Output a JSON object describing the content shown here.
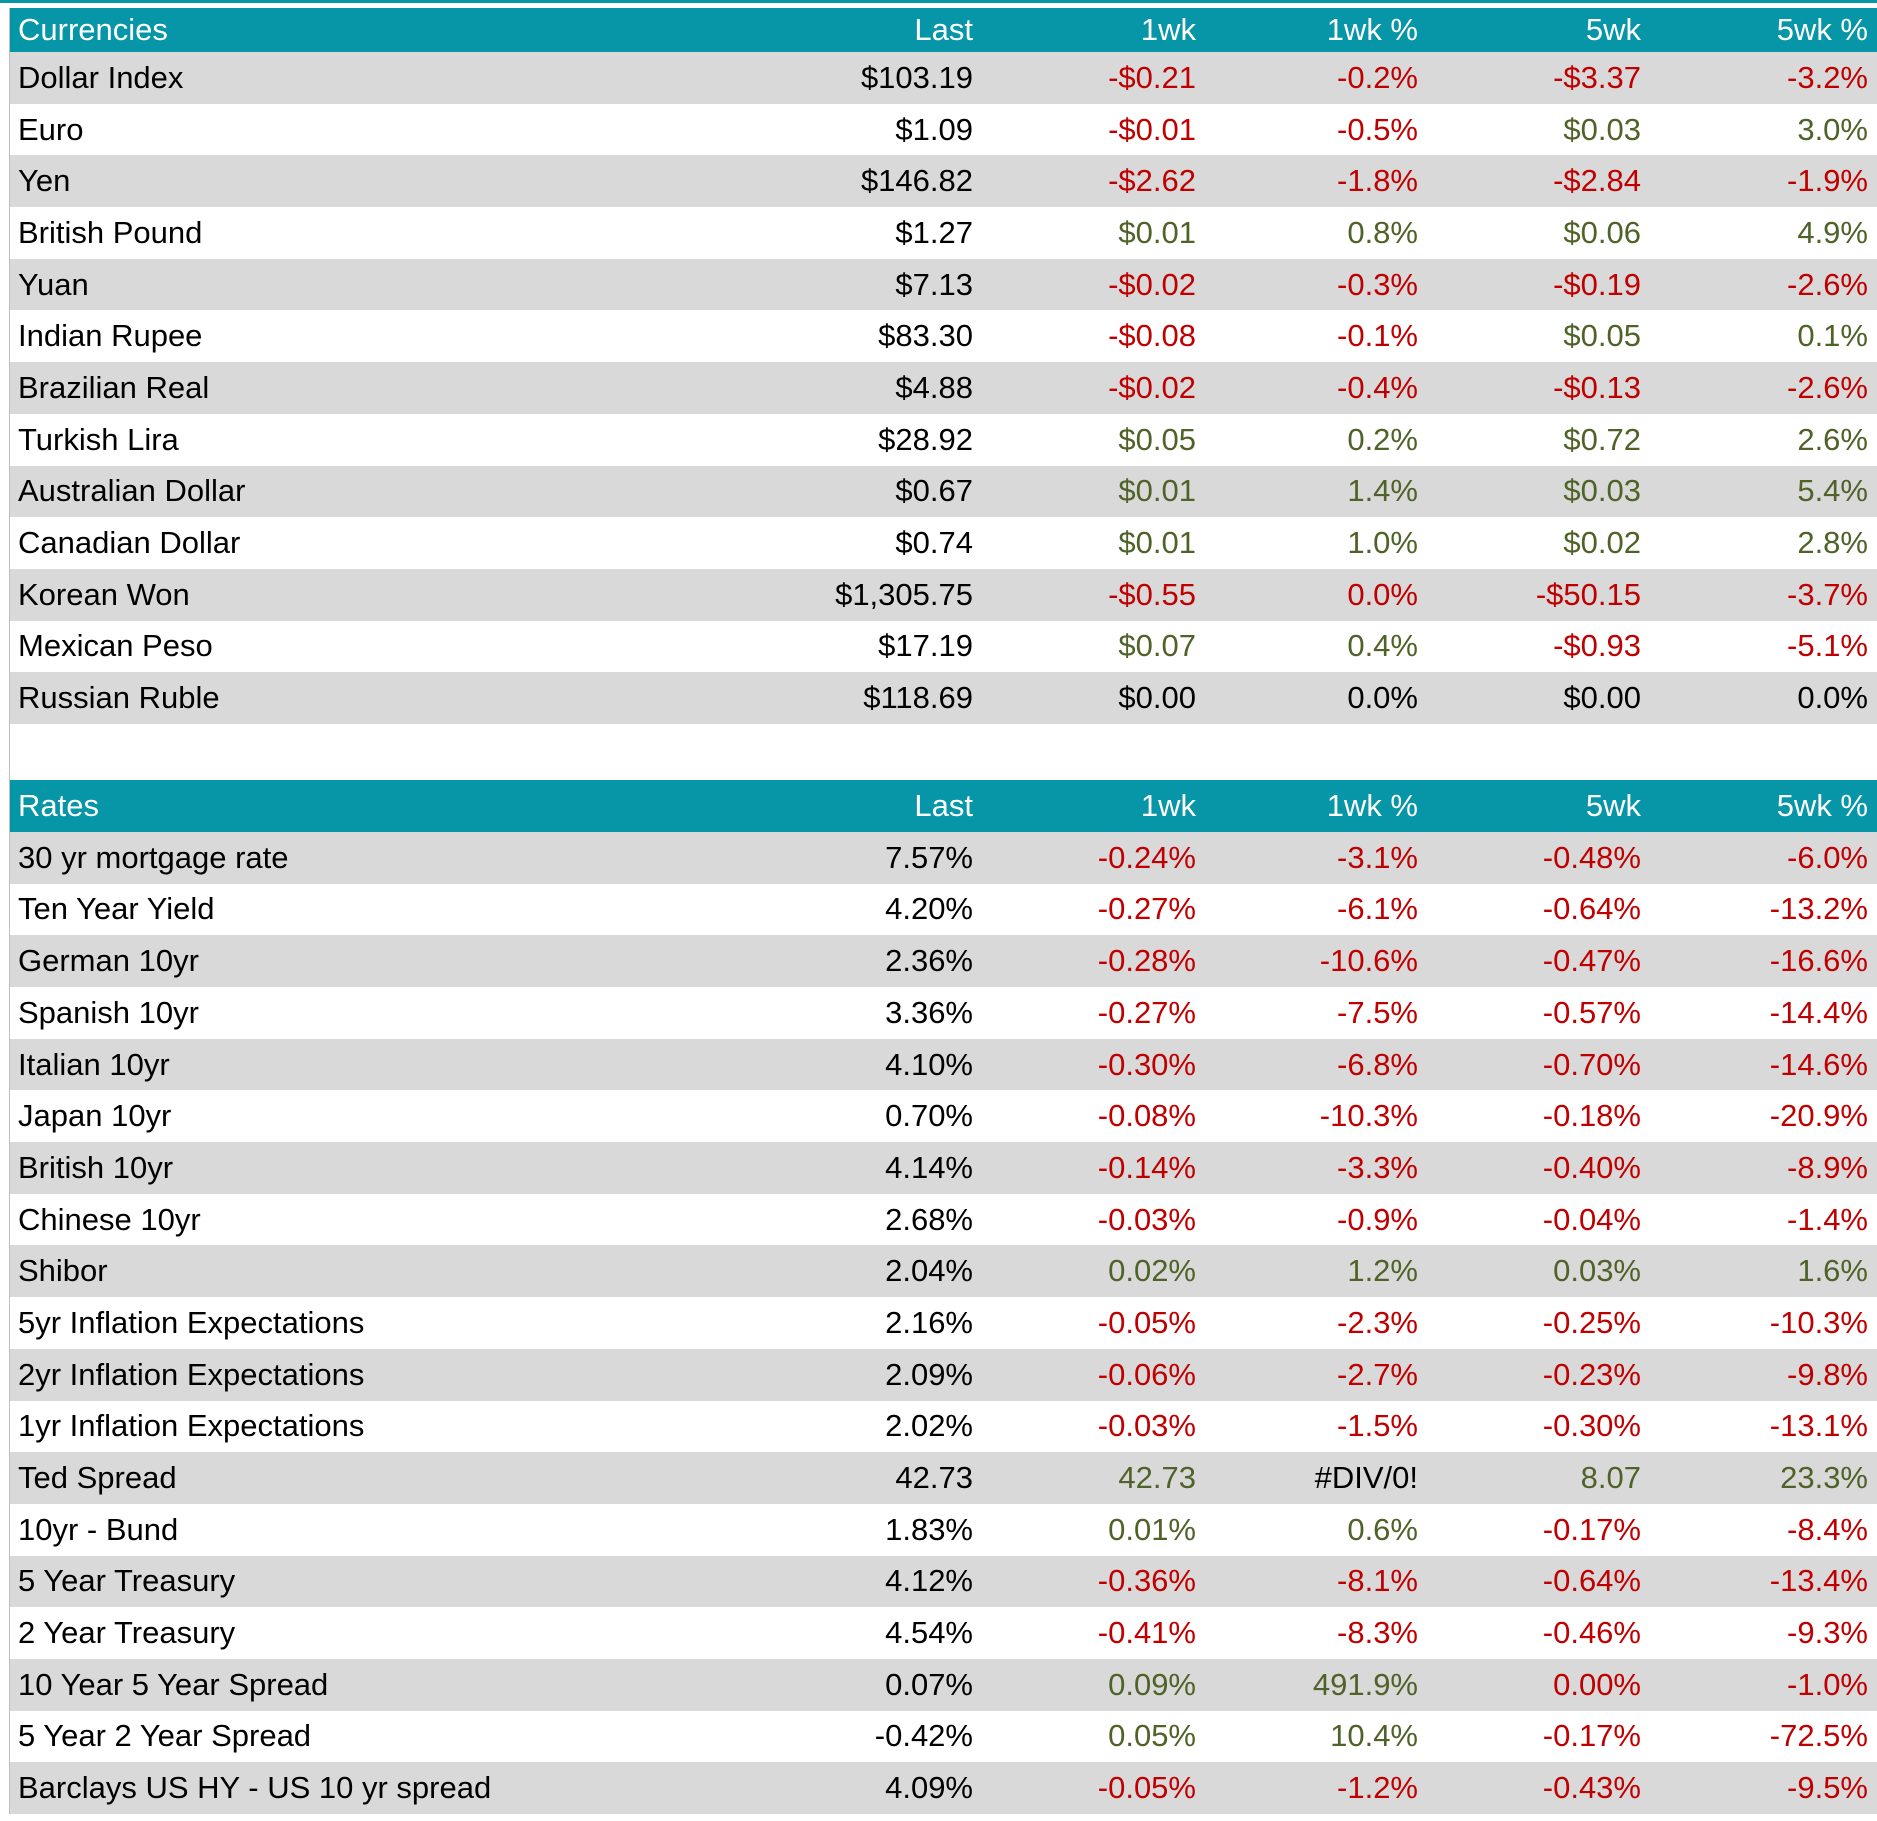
{
  "colors": {
    "header_bg": "#0795A8",
    "header_text": "#FFFFFF",
    "stripe_row": "#D9D9D9",
    "negative": "#C00000",
    "positive": "#4F6228",
    "neutral": "#000000"
  },
  "columns": [
    "Last",
    "1wk",
    "1wk %",
    "5wk",
    "5wk %"
  ],
  "tables": [
    {
      "title": "Currencies",
      "rows": [
        {
          "label": "Dollar Index",
          "cells": [
            [
              "$103.19",
              "k"
            ],
            [
              "-$0.21",
              "n"
            ],
            [
              "-0.2%",
              "n"
            ],
            [
              "-$3.37",
              "n"
            ],
            [
              "-3.2%",
              "n"
            ]
          ]
        },
        {
          "label": "Euro",
          "cells": [
            [
              "$1.09",
              "k"
            ],
            [
              "-$0.01",
              "n"
            ],
            [
              "-0.5%",
              "n"
            ],
            [
              "$0.03",
              "p"
            ],
            [
              "3.0%",
              "p"
            ]
          ]
        },
        {
          "label": "Yen",
          "cells": [
            [
              "$146.82",
              "k"
            ],
            [
              "-$2.62",
              "n"
            ],
            [
              "-1.8%",
              "n"
            ],
            [
              "-$2.84",
              "n"
            ],
            [
              "-1.9%",
              "n"
            ]
          ]
        },
        {
          "label": "British Pound",
          "cells": [
            [
              "$1.27",
              "k"
            ],
            [
              "$0.01",
              "p"
            ],
            [
              "0.8%",
              "p"
            ],
            [
              "$0.06",
              "p"
            ],
            [
              "4.9%",
              "p"
            ]
          ]
        },
        {
          "label": "Yuan",
          "cells": [
            [
              "$7.13",
              "k"
            ],
            [
              "-$0.02",
              "n"
            ],
            [
              "-0.3%",
              "n"
            ],
            [
              "-$0.19",
              "n"
            ],
            [
              "-2.6%",
              "n"
            ]
          ]
        },
        {
          "label": "Indian Rupee",
          "cells": [
            [
              "$83.30",
              "k"
            ],
            [
              "-$0.08",
              "n"
            ],
            [
              "-0.1%",
              "n"
            ],
            [
              "$0.05",
              "p"
            ],
            [
              "0.1%",
              "p"
            ]
          ]
        },
        {
          "label": "Brazilian Real",
          "cells": [
            [
              "$4.88",
              "k"
            ],
            [
              "-$0.02",
              "n"
            ],
            [
              "-0.4%",
              "n"
            ],
            [
              "-$0.13",
              "n"
            ],
            [
              "-2.6%",
              "n"
            ]
          ]
        },
        {
          "label": "Turkish Lira",
          "cells": [
            [
              "$28.92",
              "k"
            ],
            [
              "$0.05",
              "p"
            ],
            [
              "0.2%",
              "p"
            ],
            [
              "$0.72",
              "p"
            ],
            [
              "2.6%",
              "p"
            ]
          ]
        },
        {
          "label": "Australian Dollar",
          "cells": [
            [
              "$0.67",
              "k"
            ],
            [
              "$0.01",
              "p"
            ],
            [
              "1.4%",
              "p"
            ],
            [
              "$0.03",
              "p"
            ],
            [
              "5.4%",
              "p"
            ]
          ]
        },
        {
          "label": "Canadian Dollar",
          "cells": [
            [
              "$0.74",
              "k"
            ],
            [
              "$0.01",
              "p"
            ],
            [
              "1.0%",
              "p"
            ],
            [
              "$0.02",
              "p"
            ],
            [
              "2.8%",
              "p"
            ]
          ]
        },
        {
          "label": "Korean Won",
          "cells": [
            [
              "$1,305.75",
              "k"
            ],
            [
              "-$0.55",
              "n"
            ],
            [
              "0.0%",
              "n"
            ],
            [
              "-$50.15",
              "n"
            ],
            [
              "-3.7%",
              "n"
            ]
          ]
        },
        {
          "label": "Mexican Peso",
          "cells": [
            [
              "$17.19",
              "k"
            ],
            [
              "$0.07",
              "p"
            ],
            [
              "0.4%",
              "p"
            ],
            [
              "-$0.93",
              "n"
            ],
            [
              "-5.1%",
              "n"
            ]
          ]
        },
        {
          "label": "Russian Ruble",
          "cells": [
            [
              "$118.69",
              "k"
            ],
            [
              "$0.00",
              "k"
            ],
            [
              "0.0%",
              "k"
            ],
            [
              "$0.00",
              "k"
            ],
            [
              "0.0%",
              "k"
            ]
          ]
        }
      ]
    },
    {
      "title": "Rates",
      "rows": [
        {
          "label": "30 yr mortgage rate",
          "cells": [
            [
              "7.57%",
              "k"
            ],
            [
              "-0.24%",
              "n"
            ],
            [
              "-3.1%",
              "n"
            ],
            [
              "-0.48%",
              "n"
            ],
            [
              "-6.0%",
              "n"
            ]
          ]
        },
        {
          "label": "Ten Year Yield",
          "cells": [
            [
              "4.20%",
              "k"
            ],
            [
              "-0.27%",
              "n"
            ],
            [
              "-6.1%",
              "n"
            ],
            [
              "-0.64%",
              "n"
            ],
            [
              "-13.2%",
              "n"
            ]
          ]
        },
        {
          "label": "German 10yr",
          "cells": [
            [
              "2.36%",
              "k"
            ],
            [
              "-0.28%",
              "n"
            ],
            [
              "-10.6%",
              "n"
            ],
            [
              "-0.47%",
              "n"
            ],
            [
              "-16.6%",
              "n"
            ]
          ]
        },
        {
          "label": "Spanish 10yr",
          "cells": [
            [
              "3.36%",
              "k"
            ],
            [
              "-0.27%",
              "n"
            ],
            [
              "-7.5%",
              "n"
            ],
            [
              "-0.57%",
              "n"
            ],
            [
              "-14.4%",
              "n"
            ]
          ]
        },
        {
          "label": "Italian 10yr",
          "cells": [
            [
              "4.10%",
              "k"
            ],
            [
              "-0.30%",
              "n"
            ],
            [
              "-6.8%",
              "n"
            ],
            [
              "-0.70%",
              "n"
            ],
            [
              "-14.6%",
              "n"
            ]
          ]
        },
        {
          "label": "Japan 10yr",
          "cells": [
            [
              "0.70%",
              "k"
            ],
            [
              "-0.08%",
              "n"
            ],
            [
              "-10.3%",
              "n"
            ],
            [
              "-0.18%",
              "n"
            ],
            [
              "-20.9%",
              "n"
            ]
          ]
        },
        {
          "label": "British 10yr",
          "cells": [
            [
              "4.14%",
              "k"
            ],
            [
              "-0.14%",
              "n"
            ],
            [
              "-3.3%",
              "n"
            ],
            [
              "-0.40%",
              "n"
            ],
            [
              "-8.9%",
              "n"
            ]
          ]
        },
        {
          "label": "Chinese 10yr",
          "cells": [
            [
              "2.68%",
              "k"
            ],
            [
              "-0.03%",
              "n"
            ],
            [
              "-0.9%",
              "n"
            ],
            [
              "-0.04%",
              "n"
            ],
            [
              "-1.4%",
              "n"
            ]
          ]
        },
        {
          "label": "Shibor",
          "cells": [
            [
              "2.04%",
              "k"
            ],
            [
              "0.02%",
              "p"
            ],
            [
              "1.2%",
              "p"
            ],
            [
              "0.03%",
              "p"
            ],
            [
              "1.6%",
              "p"
            ]
          ]
        },
        {
          "label": "5yr Inflation Expectations",
          "cells": [
            [
              "2.16%",
              "k"
            ],
            [
              "-0.05%",
              "n"
            ],
            [
              "-2.3%",
              "n"
            ],
            [
              "-0.25%",
              "n"
            ],
            [
              "-10.3%",
              "n"
            ]
          ]
        },
        {
          "label": "2yr Inflation Expectations",
          "cells": [
            [
              "2.09%",
              "k"
            ],
            [
              "-0.06%",
              "n"
            ],
            [
              "-2.7%",
              "n"
            ],
            [
              "-0.23%",
              "n"
            ],
            [
              "-9.8%",
              "n"
            ]
          ]
        },
        {
          "label": "1yr Inflation Expectations",
          "cells": [
            [
              "2.02%",
              "k"
            ],
            [
              "-0.03%",
              "n"
            ],
            [
              "-1.5%",
              "n"
            ],
            [
              "-0.30%",
              "n"
            ],
            [
              "-13.1%",
              "n"
            ]
          ]
        },
        {
          "label": "Ted Spread",
          "cells": [
            [
              "42.73",
              "k"
            ],
            [
              "42.73",
              "p"
            ],
            [
              "#DIV/0!",
              "k"
            ],
            [
              "8.07",
              "p"
            ],
            [
              "23.3%",
              "p"
            ]
          ]
        },
        {
          "label": "10yr - Bund",
          "cells": [
            [
              "1.83%",
              "k"
            ],
            [
              "0.01%",
              "p"
            ],
            [
              "0.6%",
              "p"
            ],
            [
              "-0.17%",
              "n"
            ],
            [
              "-8.4%",
              "n"
            ]
          ]
        },
        {
          "label": "5 Year Treasury",
          "cells": [
            [
              "4.12%",
              "k"
            ],
            [
              "-0.36%",
              "n"
            ],
            [
              "-8.1%",
              "n"
            ],
            [
              "-0.64%",
              "n"
            ],
            [
              "-13.4%",
              "n"
            ]
          ]
        },
        {
          "label": "2 Year Treasury",
          "cells": [
            [
              "4.54%",
              "k"
            ],
            [
              "-0.41%",
              "n"
            ],
            [
              "-8.3%",
              "n"
            ],
            [
              "-0.46%",
              "n"
            ],
            [
              "-9.3%",
              "n"
            ]
          ]
        },
        {
          "label": "10 Year 5 Year Spread",
          "cells": [
            [
              "0.07%",
              "k"
            ],
            [
              "0.09%",
              "p"
            ],
            [
              "491.9%",
              "p"
            ],
            [
              "0.00%",
              "n"
            ],
            [
              "-1.0%",
              "n"
            ]
          ]
        },
        {
          "label": "5 Year 2 Year Spread",
          "cells": [
            [
              "-0.42%",
              "k"
            ],
            [
              "0.05%",
              "p"
            ],
            [
              "10.4%",
              "p"
            ],
            [
              "-0.17%",
              "n"
            ],
            [
              "-72.5%",
              "n"
            ]
          ]
        },
        {
          "label": "Barclays US HY - US 10 yr spread",
          "cells": [
            [
              "4.09%",
              "k"
            ],
            [
              "-0.05%",
              "n"
            ],
            [
              "-1.2%",
              "n"
            ],
            [
              "-0.43%",
              "n"
            ],
            [
              "-9.5%",
              "n"
            ]
          ]
        }
      ]
    }
  ]
}
